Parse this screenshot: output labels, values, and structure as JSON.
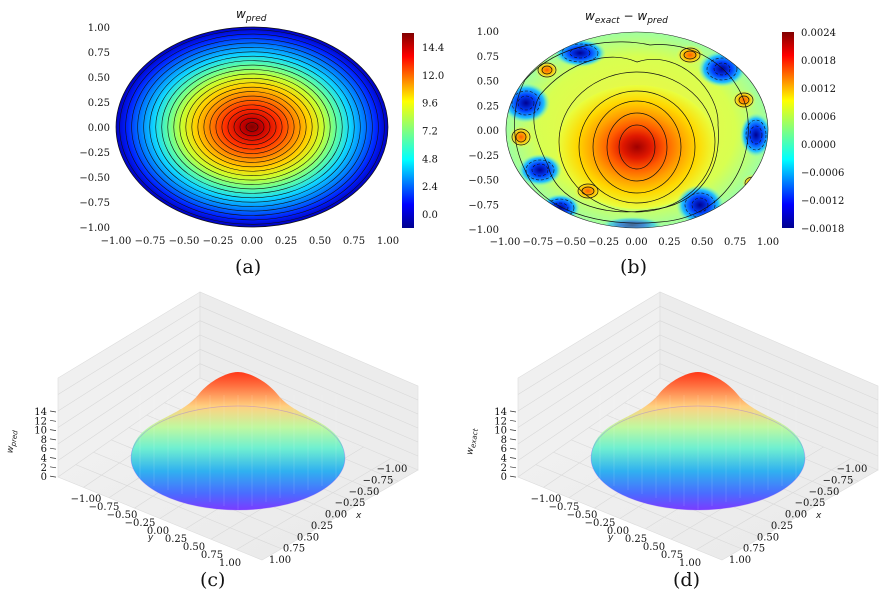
{
  "chart_data": [
    {
      "panel": "a",
      "type": "heatmap",
      "title_main": "w",
      "title_sub": "pred",
      "caption": "(a)",
      "x_ticks": [
        "−1.00",
        "−0.75",
        "−0.50",
        "−0.25",
        "0.00",
        "0.25",
        "0.50",
        "0.75",
        "1.00"
      ],
      "y_ticks": [
        "1.00",
        "0.75",
        "0.50",
        "0.25",
        "0.00",
        "−0.25",
        "−0.50",
        "−0.75",
        "−1.00"
      ],
      "xlim": [
        -1,
        1
      ],
      "ylim": [
        -1,
        1
      ],
      "colorbar_ticks": [
        "14.4",
        "12.0",
        "9.6",
        "7.2",
        "4.8",
        "2.4",
        "0.0"
      ],
      "colorbar_range": [
        -1.2,
        15.6
      ],
      "peak_value": 15.5,
      "colormap": "jet"
    },
    {
      "panel": "b",
      "type": "heatmap",
      "title_main": "w",
      "title_sub1": "exact",
      "title_minus": " − ",
      "title_main2": "w",
      "title_sub2": "pred",
      "caption": "(b)",
      "x_ticks": [
        "−1.00",
        "−0.75",
        "−0.50",
        "−0.25",
        "0.00",
        "0.25",
        "0.50",
        "0.75",
        "1.00"
      ],
      "y_ticks": [
        "1.00",
        "0.75",
        "0.50",
        "0.25",
        "0.00",
        "−0.25",
        "−0.50",
        "−0.75",
        "−1.00"
      ],
      "xlim": [
        -1,
        1
      ],
      "ylim": [
        -1,
        1
      ],
      "colorbar_ticks": [
        "0.0024",
        "0.0018",
        "0.0012",
        "0.0006",
        "0.0000",
        "−0.0006",
        "−0.0012",
        "−0.0018"
      ],
      "colorbar_range": [
        -0.0018,
        0.0024
      ],
      "colormap": "jet"
    },
    {
      "panel": "c",
      "type": "surface3d",
      "caption": "(c)",
      "zlabel": "w",
      "zlabel_sub": "pred",
      "xlabel": "x",
      "ylabel": "y",
      "z_ticks": [
        "14",
        "12",
        "10",
        "8",
        "6",
        "4",
        "2",
        "0"
      ],
      "x_ticks": [
        "−1.00",
        "−0.75",
        "−0.50",
        "−0.25",
        "0.00",
        "0.25",
        "0.50",
        "0.75",
        "1.00"
      ],
      "y_ticks": [
        "−1.00",
        "−0.75",
        "−0.50",
        "−0.25",
        "0.00",
        "0.25",
        "0.50",
        "0.75",
        "1.00"
      ],
      "colormap": "rainbow"
    },
    {
      "panel": "d",
      "type": "surface3d",
      "caption": "(d)",
      "zlabel": "w",
      "zlabel_sub": "exact",
      "xlabel": "x",
      "ylabel": "y",
      "z_ticks": [
        "14",
        "12",
        "10",
        "8",
        "6",
        "4",
        "2",
        "0"
      ],
      "x_ticks": [
        "−1.00",
        "−0.75",
        "−0.50",
        "−0.25",
        "0.00",
        "0.25",
        "0.50",
        "0.75",
        "1.00"
      ],
      "y_ticks": [
        "−1.00",
        "−0.75",
        "−0.50",
        "−0.25",
        "0.00",
        "0.25",
        "0.50",
        "0.75",
        "1.00"
      ],
      "colormap": "rainbow"
    }
  ]
}
